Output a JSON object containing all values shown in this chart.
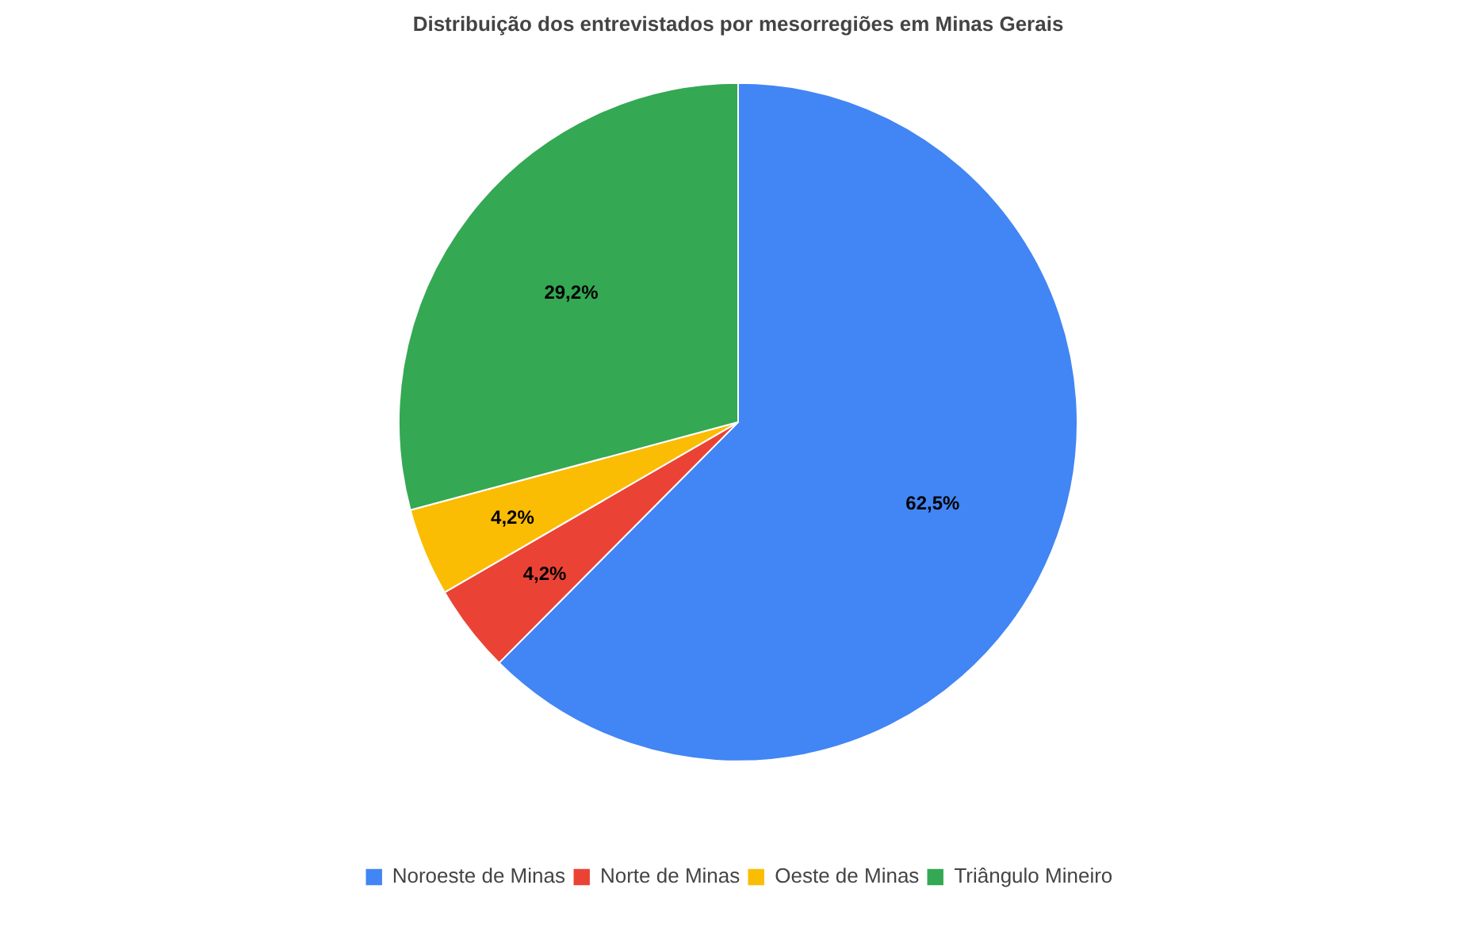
{
  "chart_data": {
    "type": "pie",
    "title": "Distribuição dos entrevistados por mesorregiões em Minas Gerais",
    "categories": [
      "Noroeste de Minas",
      "Norte de Minas",
      "Oeste de Minas",
      "Triângulo Mineiro"
    ],
    "values": [
      62.5,
      4.2,
      4.2,
      29.2
    ],
    "colors": [
      "#4285f4",
      "#ea4335",
      "#fbbc04",
      "#34a853"
    ],
    "value_labels": [
      "62,5%",
      "4,2%",
      "4,2%",
      "29,2%"
    ],
    "legend": "bottom"
  }
}
